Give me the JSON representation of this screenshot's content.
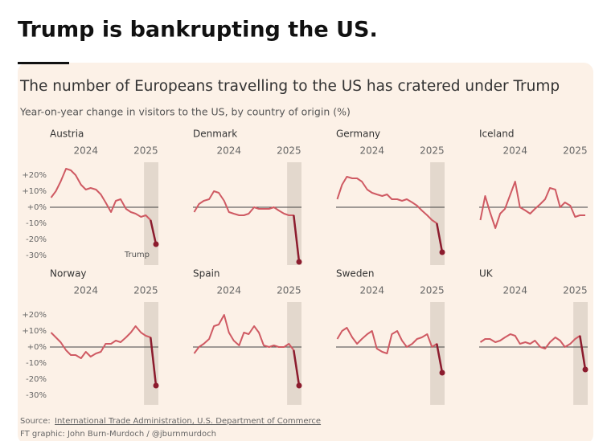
{
  "post_title": "Trump is bankrupting the US.",
  "source_label": "Source:",
  "source": "International Trade Administration, U.S. Department of Commerce",
  "credit": "FT graphic: John Burn-Murdoch / @jburnmurdoch",
  "chart_data": {
    "type": "line",
    "title": "The number of Europeans travelling to the US has cratered under Trump",
    "subtitle": "Year-on-year change in visitors to the US, by country of origin (%)",
    "color": "#cf5a63",
    "highlight_color": "#8c1c2e",
    "shade_color": "#e3d8cd",
    "shade": [
      2024.97,
      2025.21
    ],
    "x": [
      2023.42,
      2023.5,
      2023.58,
      2023.67,
      2023.75,
      2023.83,
      2023.92,
      2024,
      2024.08,
      2024.17,
      2024.25,
      2024.33,
      2024.42,
      2024.5,
      2024.58,
      2024.67,
      2024.75,
      2024.83,
      2024.92,
      2025,
      2025.08,
      2025.17
    ],
    "xlim": [
      2023.4,
      2025.21
    ],
    "xticks": [
      2024,
      2025
    ],
    "ylim": [
      -36,
      28
    ],
    "yticks": [
      {
        "value": 20,
        "label": "+20%"
      },
      {
        "value": 10,
        "label": "+10%"
      },
      {
        "value": 0,
        "label": "+0%"
      },
      {
        "value": -10,
        "label": "-10%"
      },
      {
        "value": -20,
        "label": "-20%"
      },
      {
        "value": -30,
        "label": "-30%"
      }
    ],
    "panels": [
      {
        "name": "Austria",
        "highlight": true,
        "annotation": "Trump",
        "values": [
          6,
          10,
          16,
          24,
          23,
          20,
          14,
          11,
          12,
          11,
          8,
          3,
          -3,
          4,
          5,
          -1,
          -3,
          -4,
          -6,
          -5,
          -8,
          -23
        ]
      },
      {
        "name": "Denmark",
        "highlight": true,
        "values": [
          -3,
          2,
          4,
          5,
          10,
          9,
          4,
          -3,
          -4,
          -5,
          -5,
          -4,
          0,
          -1,
          -1,
          -1,
          0,
          -2,
          -4,
          -5,
          -5,
          -34
        ]
      },
      {
        "name": "Germany",
        "highlight": true,
        "values": [
          5,
          14,
          19,
          18,
          18,
          16,
          11,
          9,
          8,
          7,
          8,
          5,
          5,
          4,
          5,
          3,
          1,
          -2,
          -5,
          -8,
          -10,
          -28
        ]
      },
      {
        "name": "Iceland",
        "highlight": false,
        "values": [
          -8,
          7,
          -3,
          -13,
          -4,
          -1,
          8,
          16,
          0,
          -2,
          -4,
          -1,
          2,
          5,
          12,
          11,
          0,
          3,
          1,
          -6,
          -5,
          -5
        ]
      },
      {
        "name": "Norway",
        "highlight": true,
        "values": [
          9,
          6,
          3,
          -2,
          -5,
          -5,
          -7,
          -3,
          -6,
          -4,
          -3,
          2,
          2,
          4,
          3,
          6,
          9,
          13,
          9,
          7,
          6,
          -24
        ]
      },
      {
        "name": "Spain",
        "highlight": true,
        "values": [
          -4,
          0,
          2,
          5,
          13,
          14,
          20,
          9,
          4,
          1,
          9,
          8,
          13,
          9,
          1,
          0,
          1,
          0,
          0,
          2,
          -2,
          -24
        ]
      },
      {
        "name": "Sweden",
        "highlight": true,
        "values": [
          5,
          10,
          12,
          6,
          2,
          5,
          8,
          10,
          -1,
          -3,
          -4,
          8,
          10,
          4,
          0,
          2,
          5,
          6,
          8,
          0,
          2,
          -16
        ]
      },
      {
        "name": "UK",
        "highlight": true,
        "values": [
          3,
          5,
          5,
          3,
          4,
          6,
          8,
          7,
          2,
          3,
          2,
          4,
          0,
          -1,
          3,
          6,
          4,
          0,
          2,
          5,
          7,
          -14
        ]
      }
    ]
  }
}
